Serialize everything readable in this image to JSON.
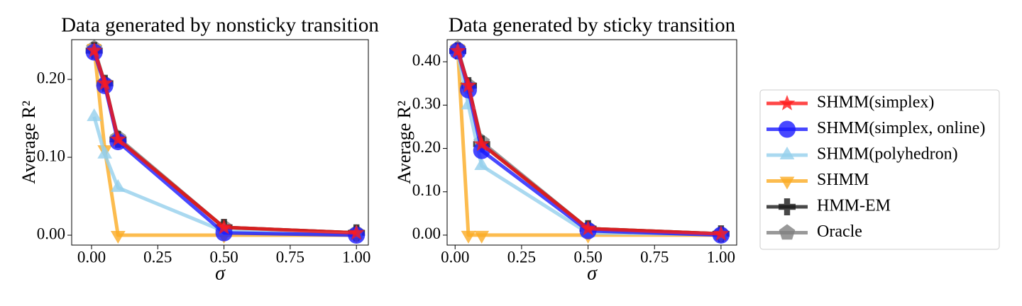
{
  "chart_data": [
    {
      "type": "line",
      "title": "Data generated by nonsticky transition",
      "x_label": "σ",
      "y_label": "Average R²",
      "x": [
        0.01,
        0.05,
        0.1,
        0.5,
        1.0
      ],
      "xlim": [
        -0.075,
        1.045
      ],
      "ylim": [
        -0.0127,
        0.251
      ],
      "xticks": [
        {
          "value": 0,
          "label": "0.00"
        },
        {
          "value": 0.25,
          "label": "0.25"
        },
        {
          "value": 0.5,
          "label": "0.50"
        },
        {
          "value": 0.75,
          "label": "0.75"
        },
        {
          "value": 1,
          "label": "1.00"
        }
      ],
      "yticks": [
        {
          "value": 0,
          "label": "0.00"
        },
        {
          "value": 0.1,
          "label": "0.10"
        },
        {
          "value": 0.2,
          "label": "0.20"
        }
      ],
      "legend": "outside right",
      "series": [
        {
          "name": "Oracle",
          "color": "#808080",
          "marker": "pentagon",
          "values": [
            0.24,
            0.195,
            0.125,
            0.01,
            0.003
          ]
        },
        {
          "name": "HMM-EM",
          "color": "#1a1a1a",
          "marker": "plus",
          "values": [
            0.237,
            0.195,
            0.123,
            0.01,
            0.003
          ]
        },
        {
          "name": "SHMM",
          "color": "#fbab23",
          "marker": "triangle-down",
          "values": [
            0.24,
            0.11,
            0.0,
            0.0,
            0.0
          ]
        },
        {
          "name": "SHMM(polyhedron)",
          "color": "#95d0ec",
          "marker": "triangle-up",
          "values": [
            0.152,
            0.104,
            0.061,
            0.005,
            0.002
          ]
        },
        {
          "name": "SHMM(simplex, online)",
          "color": "#1a1aff",
          "marker": "circle",
          "values": [
            0.235,
            0.192,
            0.12,
            0.003,
            0.0
          ]
        },
        {
          "name": "SHMM(simplex)",
          "color": "#ff1a1a",
          "marker": "star",
          "values": [
            0.237,
            0.195,
            0.123,
            0.01,
            0.003
          ]
        }
      ]
    },
    {
      "type": "line",
      "title": "Data generated by sticky transition",
      "x_label": "σ",
      "y_label": "Average R²",
      "x": [
        0.01,
        0.05,
        0.1,
        0.5,
        1.0
      ],
      "xlim": [
        -0.03,
        1.059
      ],
      "ylim": [
        -0.023,
        0.451
      ],
      "xticks": [
        {
          "value": 0,
          "label": "0.00"
        },
        {
          "value": 0.25,
          "label": "0.25"
        },
        {
          "value": 0.5,
          "label": "0.50"
        },
        {
          "value": 0.75,
          "label": "0.75"
        },
        {
          "value": 1,
          "label": "1.00"
        }
      ],
      "yticks": [
        {
          "value": 0,
          "label": "0.00"
        },
        {
          "value": 0.1,
          "label": "0.10"
        },
        {
          "value": 0.2,
          "label": "0.20"
        },
        {
          "value": 0.3,
          "label": "0.30"
        },
        {
          "value": 0.4,
          "label": "0.40"
        }
      ],
      "series": [
        {
          "color": "#808080",
          "marker": "pentagon",
          "values": [
            0.43,
            0.345,
            0.215,
            0.015,
            0.003
          ]
        },
        {
          "color": "#1a1a1a",
          "marker": "plus",
          "values": [
            0.425,
            0.345,
            0.21,
            0.015,
            0.003
          ]
        },
        {
          "color": "#fbab23",
          "marker": "triangle-down",
          "values": [
            0.43,
            0.0,
            0.0,
            0.0,
            0.0
          ]
        },
        {
          "color": "#95d0ec",
          "marker": "triangle-up",
          "values": [
            0.42,
            0.3,
            0.16,
            0.005,
            0.002
          ]
        },
        {
          "color": "#1a1aff",
          "marker": "circle",
          "values": [
            0.425,
            0.335,
            0.195,
            0.01,
            0.0
          ]
        },
        {
          "color": "#ff1a1a",
          "marker": "star",
          "values": [
            0.425,
            0.345,
            0.21,
            0.015,
            0.003
          ]
        }
      ]
    }
  ]
}
